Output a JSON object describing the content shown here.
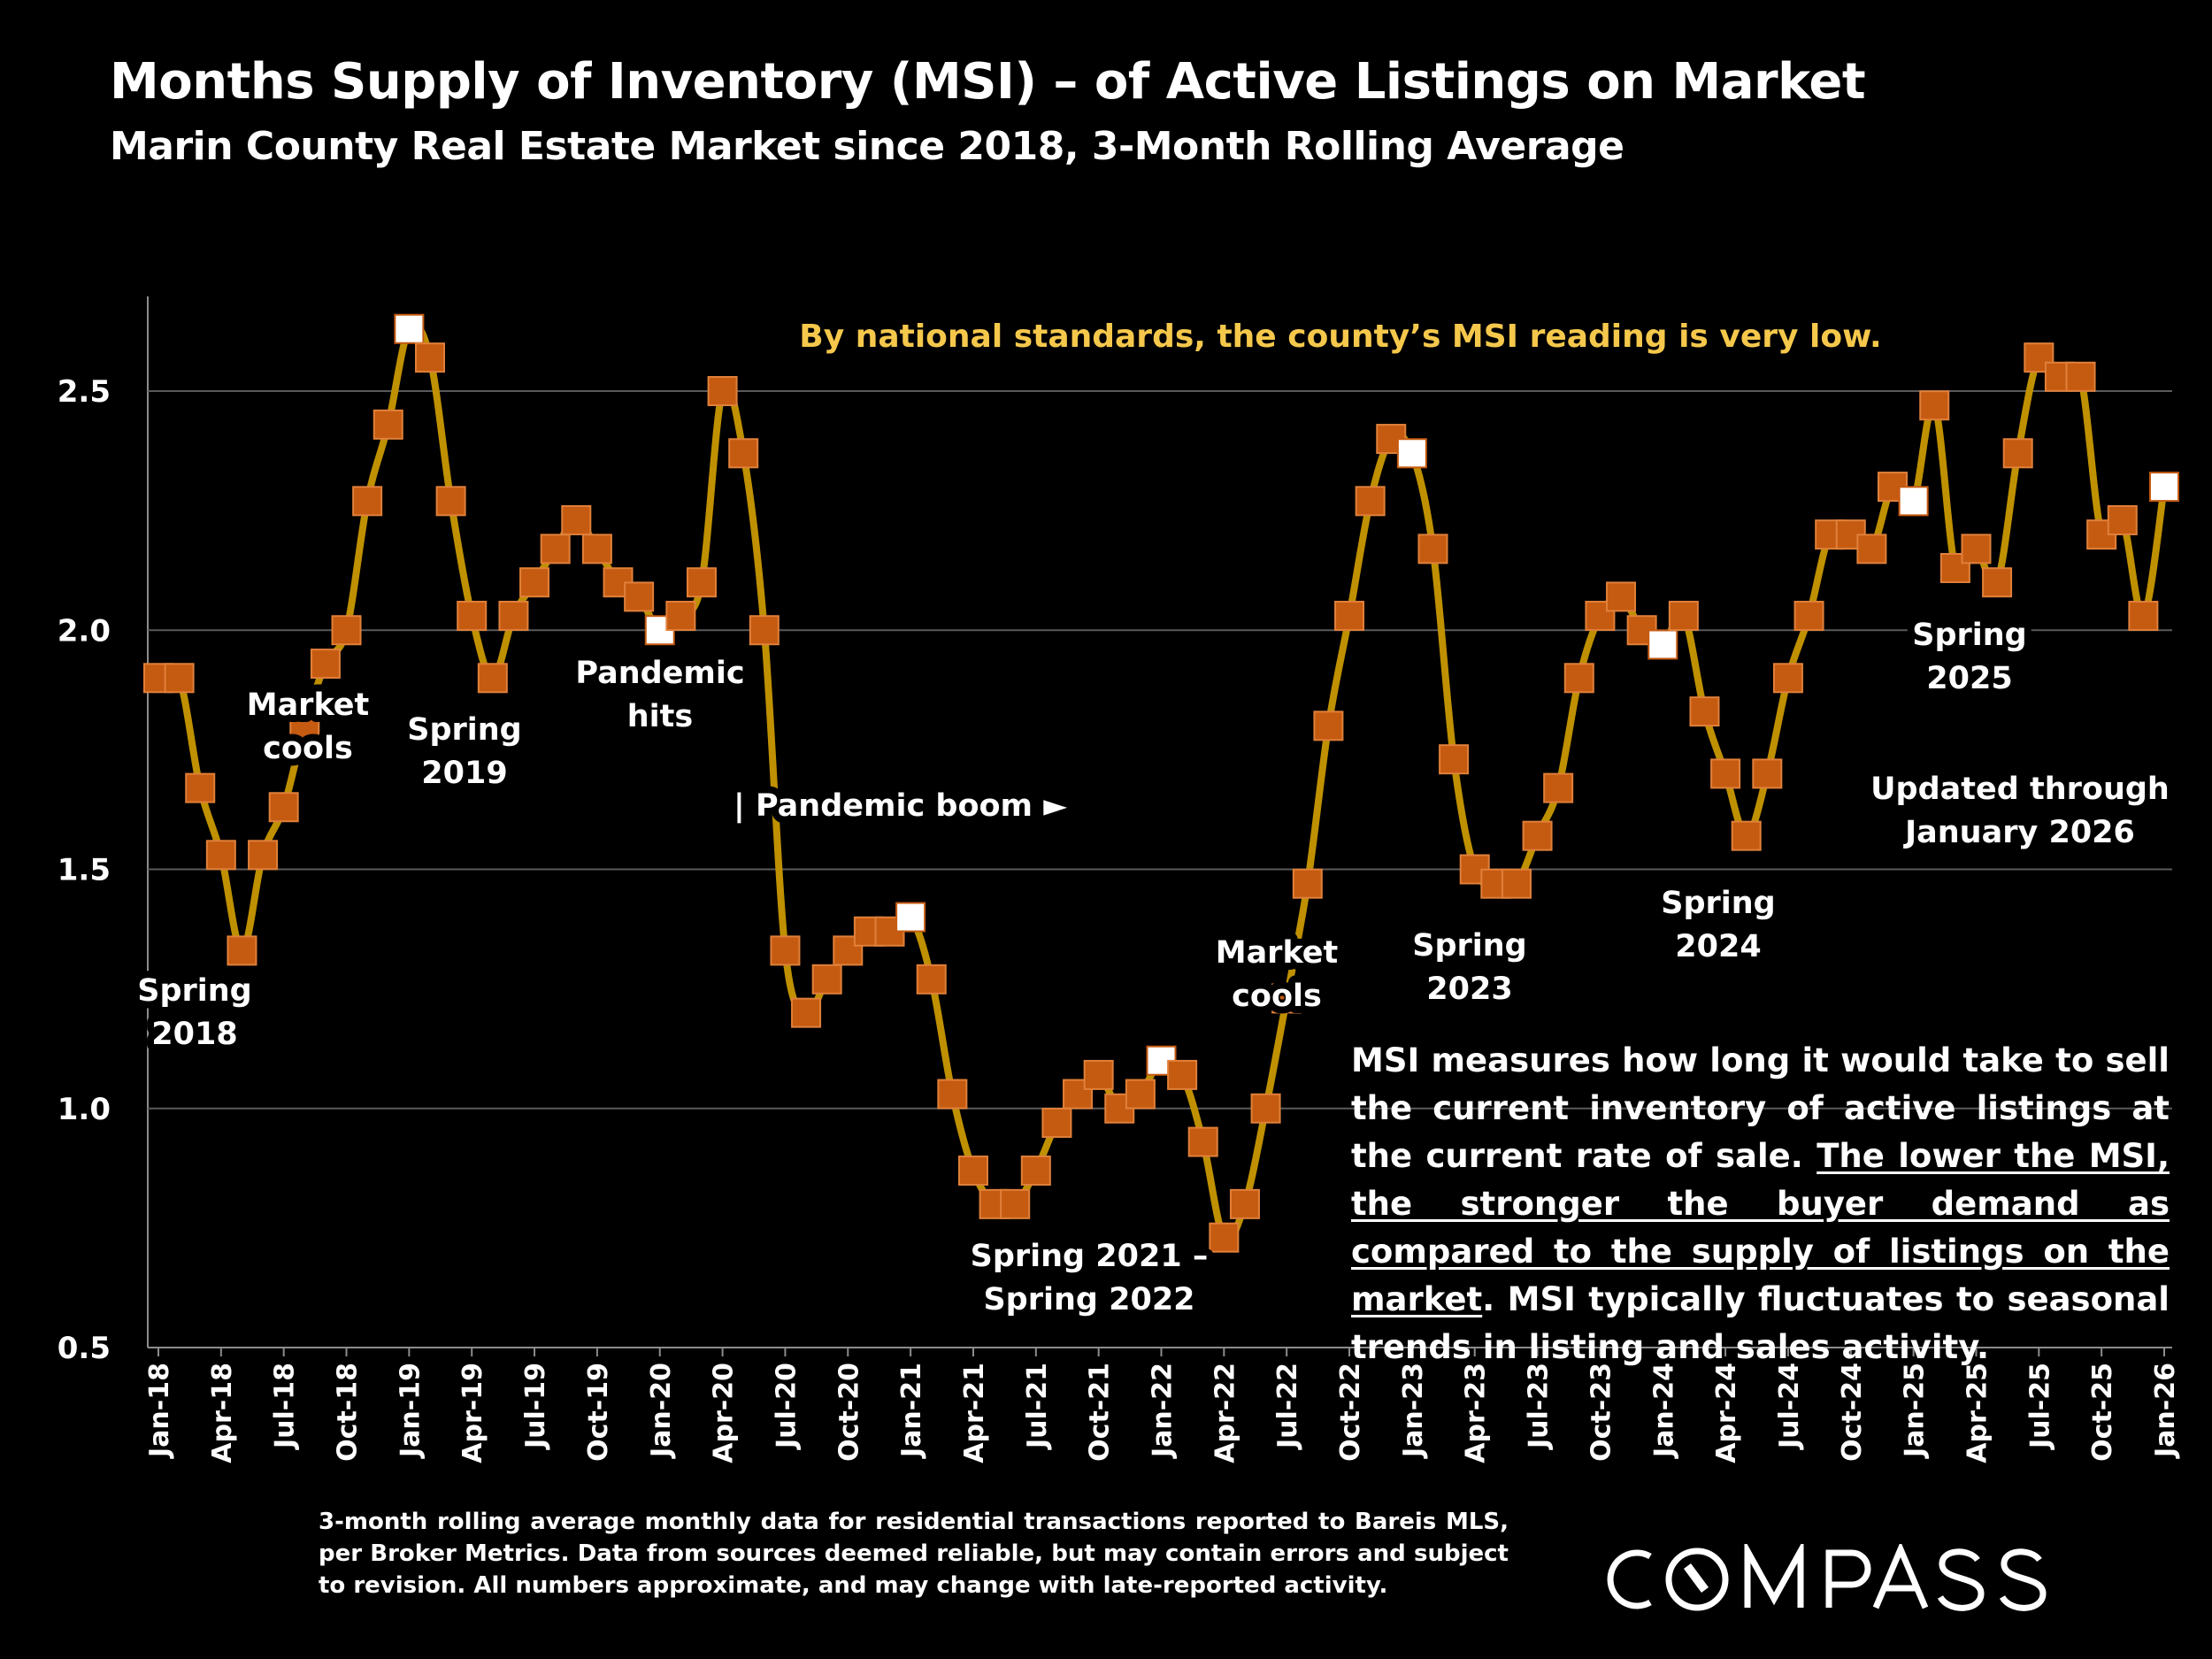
{
  "header": {
    "title": "Months Supply of Inventory (MSI) – of Active Listings on Market",
    "subtitle": "Marin County Real Estate Market since 2018, 3-Month Rolling Average"
  },
  "chart_data": {
    "type": "line",
    "title": "Months Supply of Inventory (MSI) – of Active Listings on Market",
    "subtitle": "Marin County Real Estate Market since 2018, 3-Month Rolling Average",
    "xlabel": "",
    "ylabel": "",
    "ylim": [
      0.5,
      2.7
    ],
    "yticks": [
      "0.5",
      "1.0",
      "1.5",
      "2.0",
      "2.5"
    ],
    "grid": "horizontal",
    "line_color": "#BF9000",
    "marker_color": "#C55A11",
    "highlight_marker_color": "#FFFFFF",
    "xtick_labels": [
      "Jan-18",
      "Apr-18",
      "Jul-18",
      "Oct-18",
      "Jan-19",
      "Apr-19",
      "Jul-19",
      "Oct-19",
      "Jan-20",
      "Apr-20",
      "Jul-20",
      "Oct-20",
      "Jan-21",
      "Apr-21",
      "Jul-21",
      "Oct-21",
      "Jan-22",
      "Apr-22",
      "Jul-22",
      "Oct-22",
      "Jan-23",
      "Apr-23",
      "Jul-23",
      "Oct-23",
      "Jan-24",
      "Apr-24",
      "Jul-24",
      "Oct-24",
      "Jan-25",
      "Apr-25",
      "Jul-25",
      "Oct-25",
      "Jan-26"
    ],
    "x_start": "Jan-18",
    "x_end": "Jan-26",
    "highlighted_months": [
      "Jan-19",
      "Jan-20",
      "Jan-21",
      "Jan-22",
      "Jan-23",
      "Jan-24",
      "Jan-25",
      "Jan-26"
    ],
    "values": [
      1.9,
      1.9,
      1.67,
      1.53,
      1.33,
      1.53,
      1.63,
      1.8,
      1.93,
      2.0,
      2.27,
      2.43,
      2.63,
      2.57,
      2.27,
      2.03,
      1.9,
      2.03,
      2.1,
      2.17,
      2.23,
      2.17,
      2.1,
      2.07,
      2.0,
      2.03,
      2.1,
      2.5,
      2.37,
      2.0,
      1.33,
      1.2,
      1.27,
      1.33,
      1.37,
      1.37,
      1.4,
      1.27,
      1.03,
      0.87,
      0.8,
      0.8,
      0.87,
      0.97,
      1.03,
      1.07,
      1.0,
      1.03,
      1.1,
      1.07,
      0.93,
      0.73,
      0.8,
      1.0,
      1.23,
      1.47,
      1.8,
      2.03,
      2.27,
      2.4,
      2.37,
      2.17,
      1.73,
      1.5,
      1.47,
      1.47,
      1.57,
      1.67,
      1.9,
      2.03,
      2.07,
      2.0,
      1.97,
      2.03,
      1.83,
      1.7,
      1.57,
      1.7,
      1.9,
      2.03,
      2.2,
      2.2,
      2.17,
      2.3,
      2.27,
      2.47,
      2.13,
      2.17,
      2.1,
      2.37,
      2.57,
      2.53,
      2.53,
      2.2,
      2.23,
      2.03,
      2.3
    ],
    "annotations": {
      "national": "By national standards, the county’s MSI reading is very low.",
      "spring2018": [
        "Spring",
        "2018"
      ],
      "cools2018": [
        "Market",
        "cools"
      ],
      "spring2019": [
        "Spring",
        "2019"
      ],
      "pandemic_hits": [
        "Pandemic",
        "hits"
      ],
      "pandemic_boom": "| Pandemic boom ►",
      "spring2122": [
        "Spring 2021 –",
        "Spring 2022"
      ],
      "cools2022": [
        "Market",
        "cools"
      ],
      "spring2023": [
        "Spring",
        "2023"
      ],
      "spring2024": [
        "Spring",
        "2024"
      ],
      "spring2025": [
        "Spring",
        "2025"
      ],
      "updated": [
        "Updated through",
        "January 2026"
      ]
    }
  },
  "note": {
    "part1": "MSI measures how long it would take to sell the current inventory of active listings at the current rate of sale. ",
    "underlined": "The lower the MSI, the stronger the buyer demand as compared to the supply of listings on the market",
    "part2": ". MSI typically fluctuates to seasonal trends in listing and sales activity."
  },
  "footnote": "3-month rolling average monthly data for residential transactions reported to Bareis MLS, per Broker Metrics. Data from sources deemed reliable, but may contain errors and subject to revision. All numbers approximate, and may change with late-reported activity.",
  "logo": "COMPASS"
}
